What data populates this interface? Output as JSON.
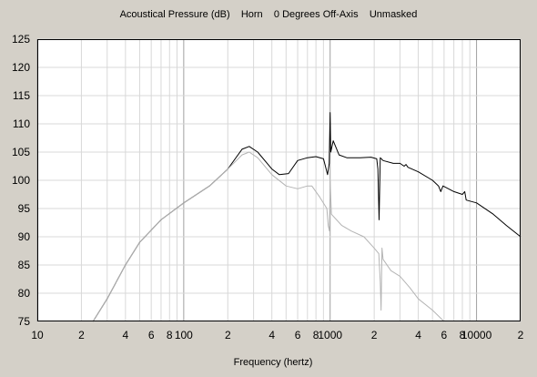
{
  "chart_data": {
    "type": "line",
    "title": "Acoustical Pressure (dB)    Horn    0 Degrees Off-Axis    Unmasked",
    "xlabel": "Frequency (hertz)",
    "ylabel": "",
    "x_scale": "log",
    "xlim": [
      10,
      20000
    ],
    "ylim": [
      75,
      125
    ],
    "y_ticks": [
      75,
      80,
      85,
      90,
      95,
      100,
      105,
      110,
      115,
      120,
      125
    ],
    "x_tick_labels": [
      {
        "x": 10,
        "label": "10"
      },
      {
        "x": 20,
        "label": "2"
      },
      {
        "x": 40,
        "label": "4"
      },
      {
        "x": 60,
        "label": "6"
      },
      {
        "x": 80,
        "label": "8"
      },
      {
        "x": 100,
        "label": "100"
      },
      {
        "x": 200,
        "label": "2"
      },
      {
        "x": 400,
        "label": "4"
      },
      {
        "x": 600,
        "label": "6"
      },
      {
        "x": 800,
        "label": "8"
      },
      {
        "x": 1000,
        "label": "1000"
      },
      {
        "x": 2000,
        "label": "2"
      },
      {
        "x": 4000,
        "label": "4"
      },
      {
        "x": 6000,
        "label": "6"
      },
      {
        "x": 8000,
        "label": "8"
      },
      {
        "x": 10000,
        "label": "10000"
      },
      {
        "x": 20000,
        "label": "2"
      }
    ],
    "grid": true,
    "colors": {
      "background": "#ffffff",
      "panel": "#d4d0c8",
      "grid_major": "#a0a0a0",
      "grid_minor": "#d8d8d8",
      "series_dark": "#000000",
      "series_light": "#b4b4b4"
    },
    "series": [
      {
        "color": "#000000",
        "points": [
          [
            24,
            75
          ],
          [
            30,
            79
          ],
          [
            40,
            85
          ],
          [
            50,
            89
          ],
          [
            70,
            93
          ],
          [
            100,
            96
          ],
          [
            150,
            99
          ],
          [
            200,
            102
          ],
          [
            250,
            105.5
          ],
          [
            280,
            106
          ],
          [
            320,
            105
          ],
          [
            400,
            102
          ],
          [
            450,
            101
          ],
          [
            520,
            101.2
          ],
          [
            600,
            103.5
          ],
          [
            700,
            104
          ],
          [
            800,
            104.2
          ],
          [
            900,
            103.8
          ],
          [
            960,
            101
          ],
          [
            985,
            103
          ],
          [
            1000,
            112
          ],
          [
            1010,
            105
          ],
          [
            1050,
            107
          ],
          [
            1150,
            104.5
          ],
          [
            1300,
            104
          ],
          [
            1600,
            104
          ],
          [
            1900,
            104.1
          ],
          [
            2080,
            103.8
          ],
          [
            2120,
            102
          ],
          [
            2160,
            93
          ],
          [
            2200,
            104
          ],
          [
            2300,
            103.5
          ],
          [
            2700,
            103
          ],
          [
            3000,
            103
          ],
          [
            3200,
            102.5
          ],
          [
            3300,
            102.8
          ],
          [
            3400,
            102.3
          ],
          [
            4000,
            101.5
          ],
          [
            5000,
            100
          ],
          [
            5500,
            99
          ],
          [
            5700,
            98
          ],
          [
            5900,
            99
          ],
          [
            7000,
            98
          ],
          [
            8000,
            97.5
          ],
          [
            8300,
            98
          ],
          [
            8500,
            96.5
          ],
          [
            10000,
            96
          ],
          [
            13000,
            94
          ],
          [
            16000,
            92
          ],
          [
            20000,
            90
          ]
        ]
      },
      {
        "color": "#b4b4b4",
        "points": [
          [
            24,
            75
          ],
          [
            30,
            79
          ],
          [
            40,
            85
          ],
          [
            50,
            89
          ],
          [
            70,
            93
          ],
          [
            100,
            96
          ],
          [
            150,
            99
          ],
          [
            200,
            102
          ],
          [
            250,
            104.5
          ],
          [
            280,
            105
          ],
          [
            320,
            104
          ],
          [
            400,
            101
          ],
          [
            500,
            99
          ],
          [
            600,
            98.5
          ],
          [
            700,
            99
          ],
          [
            750,
            99
          ],
          [
            850,
            97
          ],
          [
            950,
            95
          ],
          [
            970,
            92
          ],
          [
            990,
            91
          ],
          [
            1000,
            100
          ],
          [
            1020,
            94
          ],
          [
            1200,
            92
          ],
          [
            1400,
            91
          ],
          [
            1700,
            90
          ],
          [
            2000,
            88
          ],
          [
            2150,
            87
          ],
          [
            2200,
            82
          ],
          [
            2230,
            77
          ],
          [
            2260,
            88
          ],
          [
            2300,
            86
          ],
          [
            2600,
            84
          ],
          [
            3000,
            83
          ],
          [
            3500,
            81
          ],
          [
            4000,
            79
          ],
          [
            5000,
            77
          ],
          [
            6000,
            75
          ]
        ]
      }
    ]
  }
}
